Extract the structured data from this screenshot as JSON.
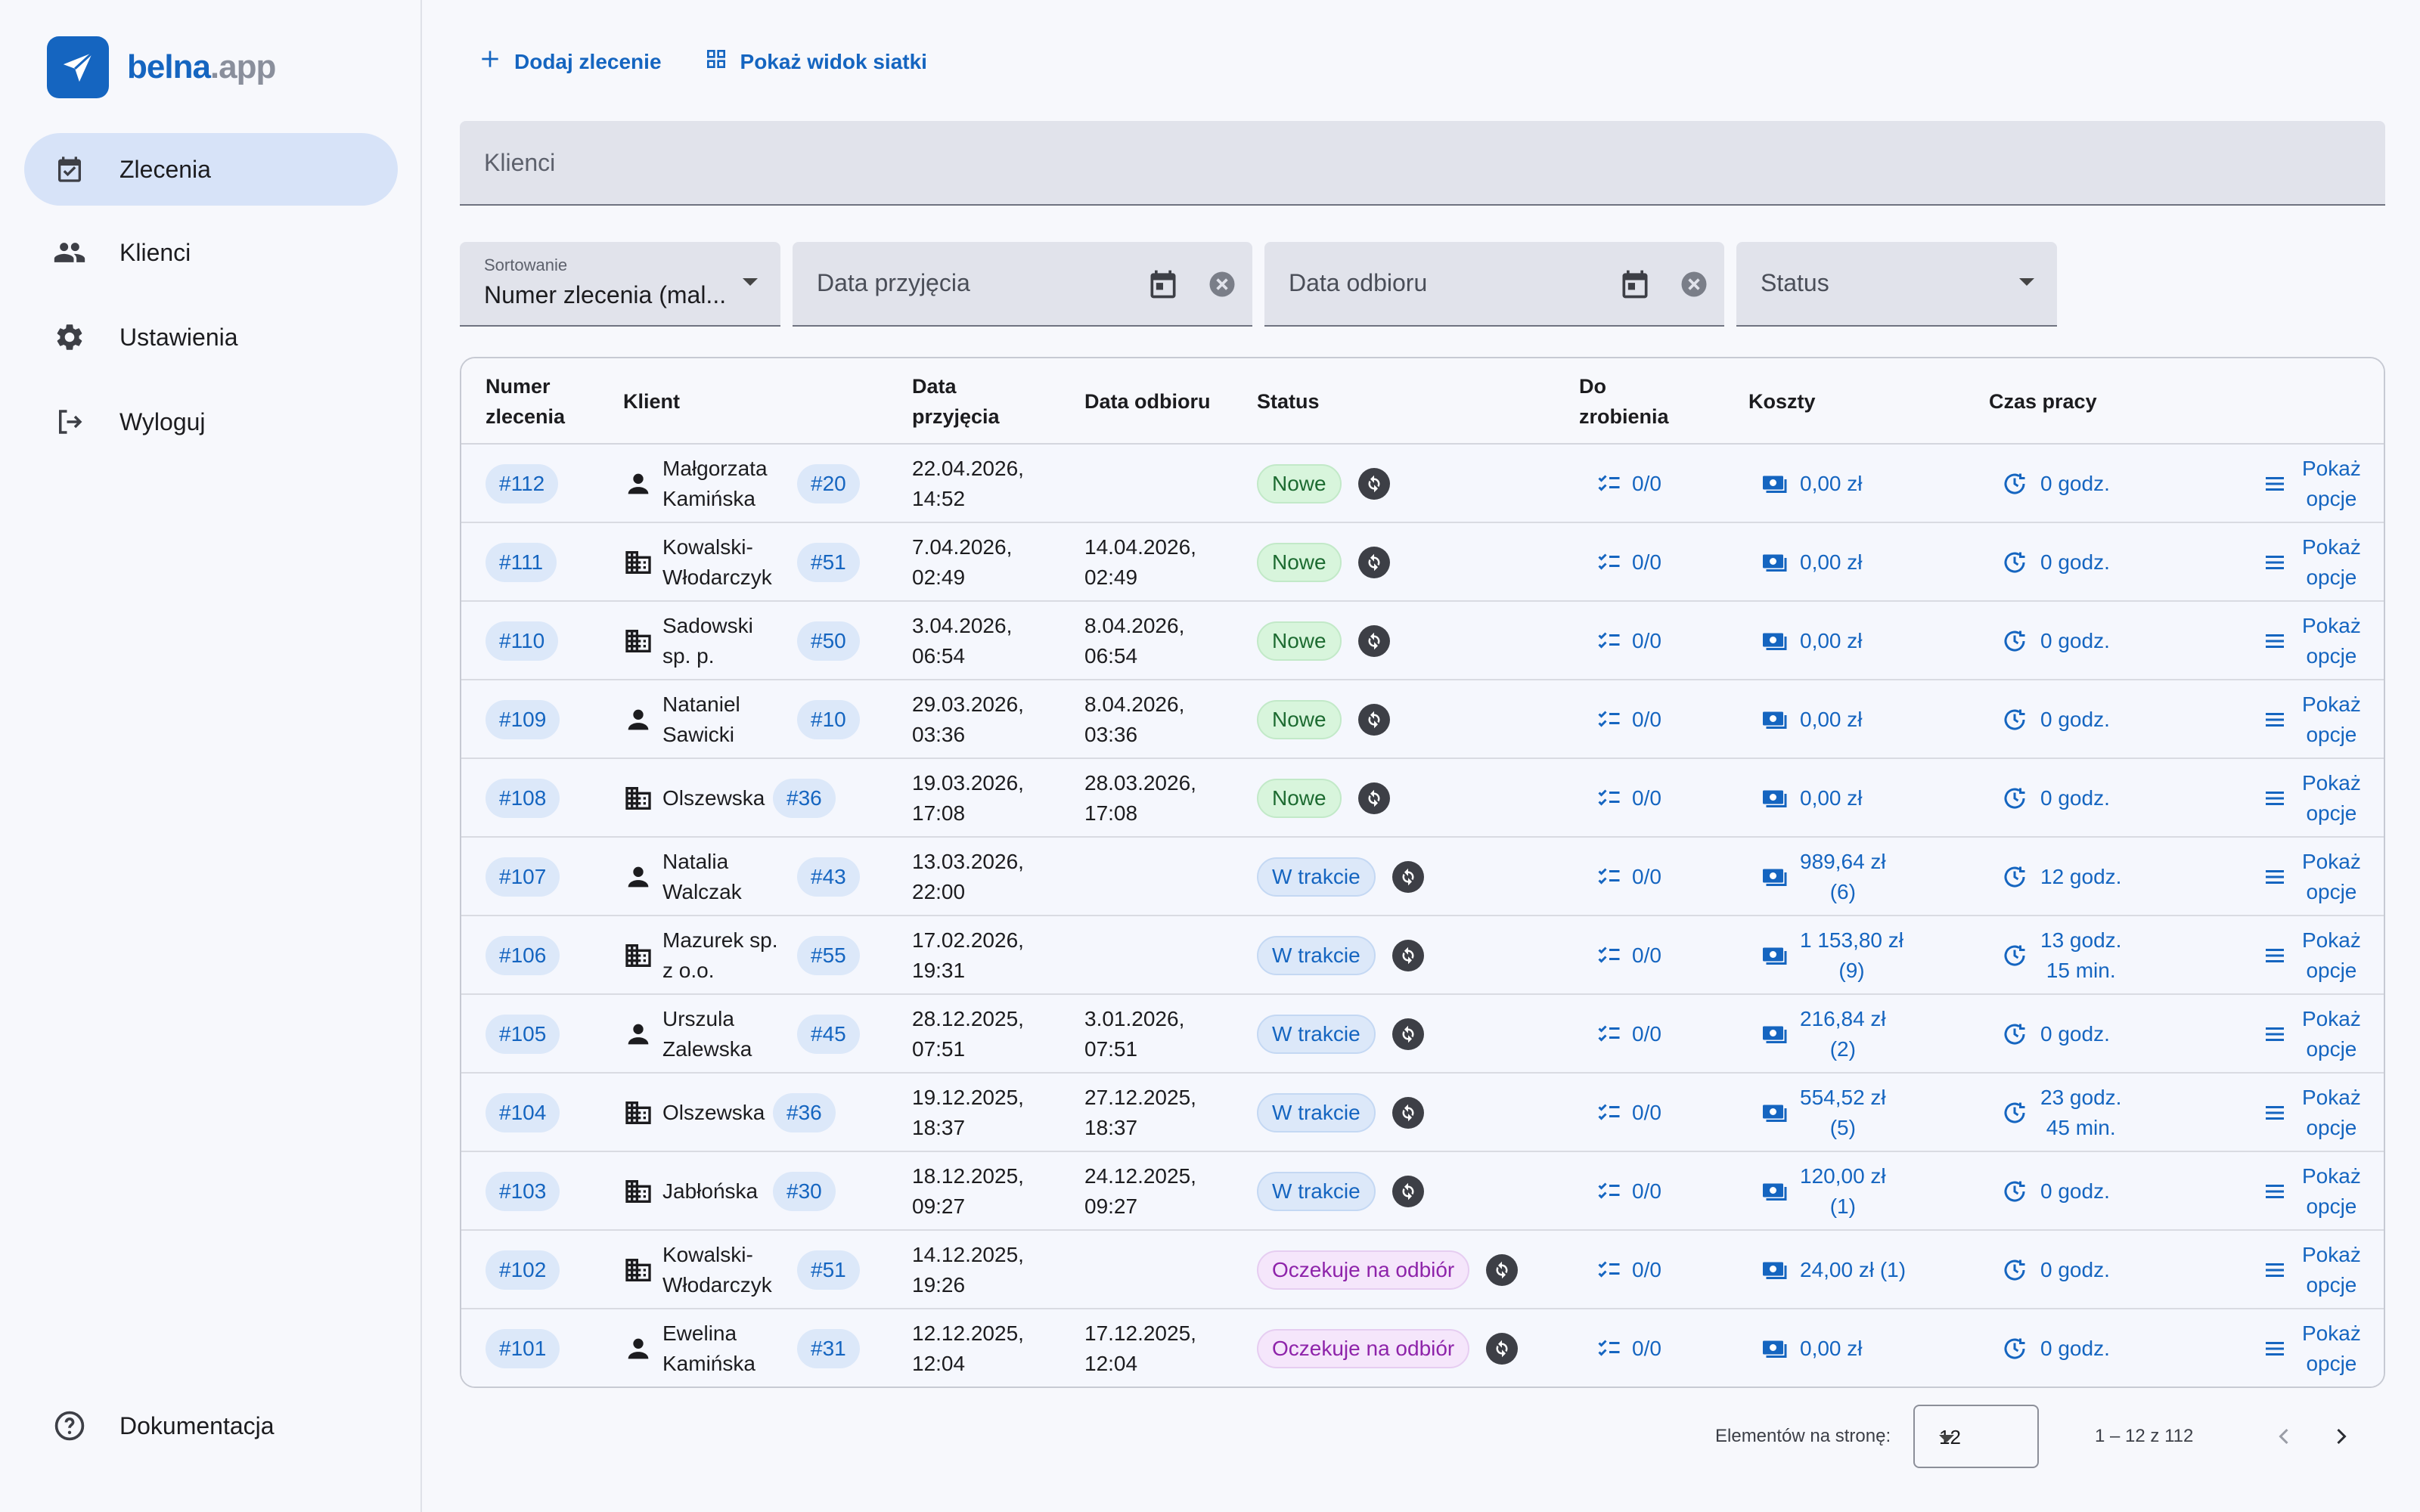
{
  "app": {
    "logo_main": "belna",
    "logo_suffix": ".app"
  },
  "sidebar": {
    "items": [
      {
        "label": "Zlecenia",
        "icon": "calendar-check-icon",
        "active": true
      },
      {
        "label": "Klienci",
        "icon": "people-icon"
      },
      {
        "label": "Ustawienia",
        "icon": "gear-icon"
      },
      {
        "label": "Wyloguj",
        "icon": "logout-icon"
      }
    ],
    "footer": {
      "label": "Dokumentacja",
      "icon": "help-circle-icon"
    }
  },
  "toolbar": {
    "add_label": "Dodaj zlecenie",
    "grid_label": "Pokaż widok siatki"
  },
  "clients_filter": {
    "placeholder": "Klienci"
  },
  "filters": {
    "sort_label": "Sortowanie",
    "sort_value": "Numer zlecenia (mal...",
    "received_placeholder": "Data przyjęcia",
    "pickup_placeholder": "Data odbioru",
    "status_placeholder": "Status"
  },
  "table": {
    "headers": {
      "number_1": "Numer",
      "number_2": "zlecenia",
      "client": "Klient",
      "received_1": "Data",
      "received_2": "przyjęcia",
      "pickup": "Data odbioru",
      "status": "Status",
      "todo_1": "Do",
      "todo_2": "zrobienia",
      "costs": "Koszty",
      "worktime": "Czas pracy"
    },
    "rows": [
      {
        "id": "#112",
        "client_type": "person",
        "client_1": "Małgorzata",
        "client_2": "Kamińska",
        "client_id": "#20",
        "recv_1": "22.04.2026,",
        "recv_2": "14:52",
        "pick_1": "",
        "pick_2": "",
        "status": "Nowe",
        "status_kind": "new",
        "todo": "0/0",
        "cost_1": "0,00 zł",
        "cost_2": "",
        "time_1": "0 godz.",
        "time_2": "",
        "opt_1": "Pokaż",
        "opt_2": "opcje"
      },
      {
        "id": "#111",
        "client_type": "company",
        "client_1": "Kowalski-",
        "client_2": "Włodarczyk",
        "client_id": "#51",
        "recv_1": "7.04.2026,",
        "recv_2": "02:49",
        "pick_1": "14.04.2026,",
        "pick_2": "02:49",
        "status": "Nowe",
        "status_kind": "new",
        "todo": "0/0",
        "cost_1": "0,00 zł",
        "cost_2": "",
        "time_1": "0 godz.",
        "time_2": "",
        "opt_1": "Pokaż",
        "opt_2": "opcje"
      },
      {
        "id": "#110",
        "client_type": "company",
        "client_1": "Sadowski",
        "client_2": "sp. p.",
        "client_id": "#50",
        "recv_1": "3.04.2026,",
        "recv_2": "06:54",
        "pick_1": "8.04.2026,",
        "pick_2": "06:54",
        "status": "Nowe",
        "status_kind": "new",
        "todo": "0/0",
        "cost_1": "0,00 zł",
        "cost_2": "",
        "time_1": "0 godz.",
        "time_2": "",
        "opt_1": "Pokaż",
        "opt_2": "opcje"
      },
      {
        "id": "#109",
        "client_type": "person",
        "client_1": "Nataniel",
        "client_2": "Sawicki",
        "client_id": "#10",
        "recv_1": "29.03.2026,",
        "recv_2": "03:36",
        "pick_1": "8.04.2026,",
        "pick_2": "03:36",
        "status": "Nowe",
        "status_kind": "new",
        "todo": "0/0",
        "cost_1": "0,00 zł",
        "cost_2": "",
        "time_1": "0 godz.",
        "time_2": "",
        "opt_1": "Pokaż",
        "opt_2": "opcje"
      },
      {
        "id": "#108",
        "client_type": "company",
        "client_1": "Olszewska",
        "client_2": "",
        "client_id": "#36",
        "recv_1": "19.03.2026,",
        "recv_2": "17:08",
        "pick_1": "28.03.2026,",
        "pick_2": "17:08",
        "status": "Nowe",
        "status_kind": "new",
        "todo": "0/0",
        "cost_1": "0,00 zł",
        "cost_2": "",
        "time_1": "0 godz.",
        "time_2": "",
        "opt_1": "Pokaż",
        "opt_2": "opcje"
      },
      {
        "id": "#107",
        "client_type": "person",
        "client_1": "Natalia",
        "client_2": "Walczak",
        "client_id": "#43",
        "recv_1": "13.03.2026,",
        "recv_2": "22:00",
        "pick_1": "",
        "pick_2": "",
        "status": "W trakcie",
        "status_kind": "progress",
        "todo": "0/0",
        "cost_1": "989,64 zł",
        "cost_2": "(6)",
        "time_1": "12 godz.",
        "time_2": "",
        "opt_1": "Pokaż",
        "opt_2": "opcje"
      },
      {
        "id": "#106",
        "client_type": "company",
        "client_1": "Mazurek sp.",
        "client_2": "z o.o.",
        "client_id": "#55",
        "recv_1": "17.02.2026,",
        "recv_2": "19:31",
        "pick_1": "",
        "pick_2": "",
        "status": "W trakcie",
        "status_kind": "progress",
        "todo": "0/0",
        "cost_1": "1 153,80 zł",
        "cost_2": "(9)",
        "time_1": "13 godz.",
        "time_2": "15 min.",
        "opt_1": "Pokaż",
        "opt_2": "opcje"
      },
      {
        "id": "#105",
        "client_type": "person",
        "client_1": "Urszula",
        "client_2": "Zalewska",
        "client_id": "#45",
        "recv_1": "28.12.2025,",
        "recv_2": "07:51",
        "pick_1": "3.01.2026,",
        "pick_2": "07:51",
        "status": "W trakcie",
        "status_kind": "progress",
        "todo": "0/0",
        "cost_1": "216,84 zł",
        "cost_2": "(2)",
        "time_1": "0 godz.",
        "time_2": "",
        "opt_1": "Pokaż",
        "opt_2": "opcje"
      },
      {
        "id": "#104",
        "client_type": "company",
        "client_1": "Olszewska",
        "client_2": "",
        "client_id": "#36",
        "recv_1": "19.12.2025,",
        "recv_2": "18:37",
        "pick_1": "27.12.2025,",
        "pick_2": "18:37",
        "status": "W trakcie",
        "status_kind": "progress",
        "todo": "0/0",
        "cost_1": "554,52 zł",
        "cost_2": "(5)",
        "time_1": "23 godz.",
        "time_2": "45 min.",
        "opt_1": "Pokaż",
        "opt_2": "opcje"
      },
      {
        "id": "#103",
        "client_type": "company",
        "client_1": "Jabłońska",
        "client_2": "",
        "client_id": "#30",
        "recv_1": "18.12.2025,",
        "recv_2": "09:27",
        "pick_1": "24.12.2025,",
        "pick_2": "09:27",
        "status": "W trakcie",
        "status_kind": "progress",
        "todo": "0/0",
        "cost_1": "120,00 zł",
        "cost_2": "(1)",
        "time_1": "0 godz.",
        "time_2": "",
        "opt_1": "Pokaż",
        "opt_2": "opcje"
      },
      {
        "id": "#102",
        "client_type": "company",
        "client_1": "Kowalski-",
        "client_2": "Włodarczyk",
        "client_id": "#51",
        "recv_1": "14.12.2025,",
        "recv_2": "19:26",
        "pick_1": "",
        "pick_2": "",
        "status": "Oczekuje na odbiór",
        "status_kind": "waiting",
        "todo": "0/0",
        "cost_1": "24,00 zł (1)",
        "cost_2": "",
        "time_1": "0 godz.",
        "time_2": "",
        "opt_1": "Pokaż",
        "opt_2": "opcje"
      },
      {
        "id": "#101",
        "client_type": "person",
        "client_1": "Ewelina",
        "client_2": "Kamińska",
        "client_id": "#31",
        "recv_1": "12.12.2025,",
        "recv_2": "12:04",
        "pick_1": "17.12.2025,",
        "pick_2": "12:04",
        "status": "Oczekuje na odbiór",
        "status_kind": "waiting",
        "todo": "0/0",
        "cost_1": "0,00 zł",
        "cost_2": "",
        "time_1": "0 godz.",
        "time_2": "",
        "opt_1": "Pokaż",
        "opt_2": "opcje"
      }
    ]
  },
  "pagination": {
    "per_page_label": "Elementów na stronę:",
    "per_page_value": "12",
    "range": "1 – 12 z 112"
  },
  "colors": {
    "accent": "#1565c0",
    "active_nav": "#d7e3f8"
  }
}
